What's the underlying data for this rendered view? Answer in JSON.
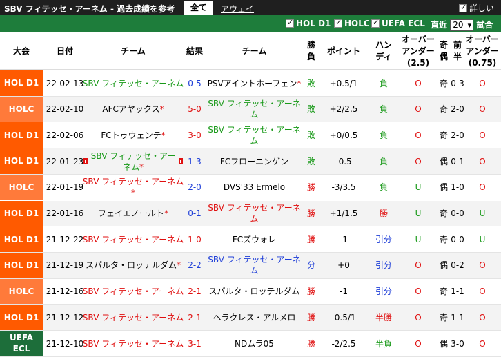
{
  "header": {
    "title": "SBV フィテッセ・アーネム - 過去成績を参考",
    "tab_all": "全て",
    "tab_away": "アウェイ",
    "detail_label": "詳しい"
  },
  "filters": {
    "hol_d1": "HOL D1",
    "holc": "HOLC",
    "uefa_ecl": "UEFA ECL",
    "recent_label": "直近",
    "recent_value": "20",
    "matches_label": "試合"
  },
  "columns": {
    "league": "大会",
    "date": "日付",
    "home": "チーム",
    "score": "結果",
    "away": "チーム",
    "result": "勝\n負",
    "points": "ポイント",
    "handicap": "ハン\nディ",
    "ou": "オーバー\nアンダー\n(2.5)",
    "oe": "奇\n偶",
    "half": "前\n半",
    "ou2": "オーバー\nアンダー\n(0.75)"
  },
  "colors": {
    "hol_d1": "#ff5a00",
    "holc": "#ff7a3a",
    "uefa_ecl": "#1d6e3a"
  },
  "rows": [
    {
      "league": "HOL D1",
      "lc": "#ff5a00",
      "date": "22-02-13",
      "home": "SBV フィテッセ・アーネム",
      "home_color": "green",
      "home_star": false,
      "home_flag": false,
      "score": "0-5",
      "score_color": "blue",
      "away": "PSVアイントホーフェン",
      "away_color": "black",
      "away_star": true,
      "away_flag": false,
      "result": "敗",
      "result_color": "green",
      "points": "+0.5/1",
      "handicap": "負",
      "handicap_color": "green",
      "ou": "O",
      "ou_color": "red",
      "oe": "奇",
      "half": "0-3",
      "ou2": "O",
      "ou2_color": "red"
    },
    {
      "league": "HOLC",
      "lc": "#ff7a3a",
      "date": "22-02-10",
      "home": "AFCアヤックス",
      "home_color": "black",
      "home_star": true,
      "home_flag": false,
      "score": "5-0",
      "score_color": "red",
      "away": "SBV フィテッセ・アーネム",
      "away_color": "green",
      "away_star": false,
      "away_flag": false,
      "result": "敗",
      "result_color": "green",
      "points": "+2/2.5",
      "handicap": "負",
      "handicap_color": "green",
      "ou": "O",
      "ou_color": "red",
      "oe": "奇",
      "half": "2-0",
      "ou2": "O",
      "ou2_color": "red"
    },
    {
      "league": "HOL D1",
      "lc": "#ff5a00",
      "date": "22-02-06",
      "home": "FCトゥウェンテ",
      "home_color": "black",
      "home_star": true,
      "home_flag": false,
      "score": "3-0",
      "score_color": "red",
      "away": "SBV フィテッセ・アーネム",
      "away_color": "green",
      "away_star": false,
      "away_flag": false,
      "result": "敗",
      "result_color": "green",
      "points": "+0/0.5",
      "handicap": "負",
      "handicap_color": "green",
      "ou": "O",
      "ou_color": "red",
      "oe": "奇",
      "half": "2-0",
      "ou2": "O",
      "ou2_color": "red"
    },
    {
      "league": "HOL D1",
      "lc": "#ff5a00",
      "date": "22-01-23",
      "home": "SBV フィテッセ・アーネム",
      "home_color": "green",
      "home_star": true,
      "home_flag": true,
      "score": "1-3",
      "score_color": "blue",
      "away": "FCフローニンゲン",
      "away_color": "black",
      "away_star": false,
      "away_flag": false,
      "result": "敗",
      "result_color": "green",
      "points": "-0.5",
      "handicap": "負",
      "handicap_color": "green",
      "ou": "O",
      "ou_color": "red",
      "oe": "偶",
      "half": "0-1",
      "ou2": "O",
      "ou2_color": "red"
    },
    {
      "league": "HOLC",
      "lc": "#ff7a3a",
      "date": "22-01-19",
      "home": "SBV フィテッセ・アーネム",
      "home_color": "red",
      "home_star": true,
      "home_flag": false,
      "score": "2-0",
      "score_color": "blue",
      "away": "DVS'33 Ermelo",
      "away_color": "black",
      "away_star": false,
      "away_flag": false,
      "result": "勝",
      "result_color": "red",
      "points": "-3/3.5",
      "handicap": "負",
      "handicap_color": "green",
      "ou": "U",
      "ou_color": "green",
      "oe": "偶",
      "half": "1-0",
      "ou2": "O",
      "ou2_color": "red"
    },
    {
      "league": "HOL D1",
      "lc": "#ff5a00",
      "date": "22-01-16",
      "home": "フェイエノールト",
      "home_color": "black",
      "home_star": true,
      "home_flag": false,
      "score": "0-1",
      "score_color": "blue",
      "away": "SBV フィテッセ・アーネム",
      "away_color": "red",
      "away_star": false,
      "away_flag": false,
      "result": "勝",
      "result_color": "red",
      "points": "+1/1.5",
      "handicap": "勝",
      "handicap_color": "red",
      "ou": "U",
      "ou_color": "green",
      "oe": "奇",
      "half": "0-0",
      "ou2": "U",
      "ou2_color": "green"
    },
    {
      "league": "HOL D1",
      "lc": "#ff5a00",
      "date": "21-12-22",
      "home": "SBV フィテッセ・アーネム",
      "home_color": "red",
      "home_star": false,
      "home_flag": false,
      "score": "1-0",
      "score_color": "red",
      "away": "FCズウォレ",
      "away_color": "black",
      "away_star": false,
      "away_flag": false,
      "result": "勝",
      "result_color": "red",
      "points": "-1",
      "handicap": "引分",
      "handicap_color": "blue",
      "ou": "U",
      "ou_color": "green",
      "oe": "奇",
      "half": "0-0",
      "ou2": "U",
      "ou2_color": "green"
    },
    {
      "league": "HOL D1",
      "lc": "#ff5a00",
      "date": "21-12-19",
      "home": "スパルタ・ロッテルダム",
      "home_color": "black",
      "home_star": true,
      "home_flag": false,
      "score": "2-2",
      "score_color": "blue",
      "away": "SBV フィテッセ・アーネム",
      "away_color": "blue",
      "away_star": false,
      "away_flag": false,
      "result": "分",
      "result_color": "blue",
      "points": "+0",
      "handicap": "引分",
      "handicap_color": "blue",
      "ou": "O",
      "ou_color": "red",
      "oe": "偶",
      "half": "0-2",
      "ou2": "O",
      "ou2_color": "red"
    },
    {
      "league": "HOLC",
      "lc": "#ff7a3a",
      "date": "21-12-16",
      "home": "SBV フィテッセ・アーネム",
      "home_color": "red",
      "home_star": false,
      "home_flag": false,
      "score": "2-1",
      "score_color": "red",
      "away": "スパルタ・ロッテルダム",
      "away_color": "black",
      "away_star": false,
      "away_flag": false,
      "result": "勝",
      "result_color": "red",
      "points": "-1",
      "handicap": "引分",
      "handicap_color": "blue",
      "ou": "O",
      "ou_color": "red",
      "oe": "奇",
      "half": "1-1",
      "ou2": "O",
      "ou2_color": "red"
    },
    {
      "league": "HOL D1",
      "lc": "#ff5a00",
      "date": "21-12-12",
      "home": "SBV フィテッセ・アーネム",
      "home_color": "red",
      "home_star": false,
      "home_flag": false,
      "score": "2-1",
      "score_color": "red",
      "away": "ヘラクレス・アルメロ",
      "away_color": "black",
      "away_star": false,
      "away_flag": false,
      "result": "勝",
      "result_color": "red",
      "points": "-0.5/1",
      "handicap": "半勝",
      "handicap_color": "red",
      "ou": "O",
      "ou_color": "red",
      "oe": "奇",
      "half": "1-1",
      "ou2": "O",
      "ou2_color": "red"
    },
    {
      "league": "UEFA ECL",
      "lc": "#1d6e3a",
      "date": "21-12-10",
      "home": "SBV フィテッセ・アーネム",
      "home_color": "red",
      "home_star": false,
      "home_flag": false,
      "score": "3-1",
      "score_color": "red",
      "away": "NDムラ05",
      "away_color": "black",
      "away_star": false,
      "away_flag": false,
      "result": "勝",
      "result_color": "red",
      "points": "-2/2.5",
      "handicap": "半負",
      "handicap_color": "green",
      "ou": "O",
      "ou_color": "red",
      "oe": "偶",
      "half": "3-0",
      "ou2": "O",
      "ou2_color": "red"
    }
  ]
}
